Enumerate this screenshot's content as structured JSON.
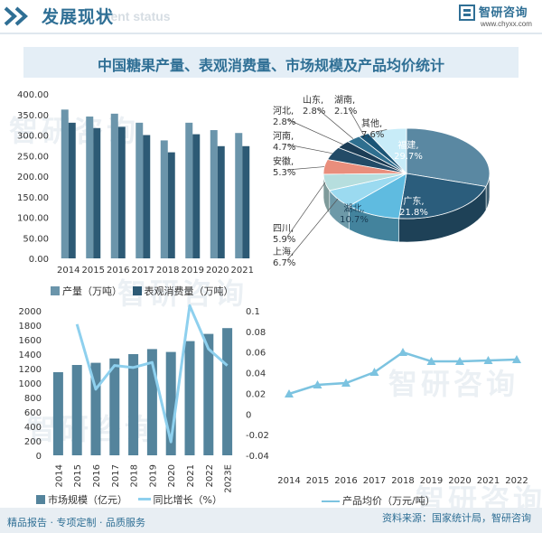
{
  "header": {
    "title": "发展现状",
    "subtitle": "ment status",
    "brand": "智研咨询",
    "url": "www.chyxx.com"
  },
  "main_title": "中国糖果产量、表观消费量、市场规模及产品均价统计",
  "colors": {
    "accent": "#2f6f95",
    "bar_light": "#6b95ab",
    "bar_dark": "#2d5a75",
    "market_bar": "#54849c",
    "growth_line": "#8ed0ee",
    "price_line": "#7cc3e0",
    "band": "#e4eef6"
  },
  "watermark": "智研咨询",
  "chart_data": [
    {
      "type": "bar",
      "categories": [
        "2014",
        "2015",
        "2016",
        "2017",
        "2018",
        "2019",
        "2020",
        "2021"
      ],
      "series": [
        {
          "name": "产量（万吨）",
          "values": [
            362,
            345,
            352,
            330,
            287,
            330,
            312,
            305
          ]
        },
        {
          "name": "表观消费量（万吨）",
          "values": [
            330,
            317,
            320,
            300,
            258,
            302,
            273,
            273
          ]
        }
      ],
      "yticks": [
        "0.00",
        "50.00",
        "100.00",
        "150.00",
        "200.00",
        "250.00",
        "300.00",
        "350.00",
        "400.00"
      ],
      "ylim": [
        0,
        400
      ],
      "legend": "bottom"
    },
    {
      "type": "pie",
      "labels": [
        "福建",
        "广东",
        "湖北",
        "上海",
        "四川",
        "安徽",
        "河南",
        "河北",
        "山东",
        "湖南",
        "其他"
      ],
      "values": [
        29.7,
        21.8,
        10.7,
        6.7,
        5.9,
        5.3,
        4.7,
        2.8,
        2.8,
        2.1,
        7.6
      ],
      "display": [
        "29.7%",
        "21.8%",
        "10.7%",
        "6.7%",
        "5.9%",
        "5.3%",
        "4.7%",
        "2.8%",
        "2.8%",
        "2.1%",
        "7.6%"
      ],
      "colors": [
        "#5a88a2",
        "#2b5d7c",
        "#5fbbe0",
        "#9bdaf0",
        "#b6dede",
        "#e98e7c",
        "#234b67",
        "#1c3d56",
        "#2f6f8f",
        "#1a5576",
        "#c8ecf8"
      ]
    },
    {
      "type": "bar",
      "categories": [
        "2014",
        "2015",
        "2016",
        "2017",
        "2018",
        "2019",
        "2020",
        "2021",
        "2022",
        "2023E"
      ],
      "series": [
        {
          "name": "市场规模（亿元）",
          "type": "bar",
          "values": [
            1150,
            1250,
            1280,
            1340,
            1400,
            1470,
            1430,
            1580,
            1680,
            1760
          ]
        },
        {
          "name": "同比增长（%）",
          "type": "line",
          "values": [
            null,
            0.087,
            0.024,
            0.047,
            0.045,
            0.05,
            -0.027,
            0.105,
            0.063,
            0.047
          ]
        }
      ],
      "yticks_left": [
        "0",
        "200",
        "400",
        "600",
        "800",
        "1000",
        "1200",
        "1400",
        "1600",
        "1800",
        "2000"
      ],
      "yticks_right": [
        "-0.04",
        "-0.02",
        "0",
        "0.02",
        "0.04",
        "0.06",
        "0.08",
        "0.1"
      ],
      "ylim_left": [
        0,
        2000
      ],
      "ylim_right": [
        -0.04,
        0.1
      ],
      "legend": "bottom"
    },
    {
      "type": "line",
      "categories": [
        "2014",
        "2015",
        "2016",
        "2017",
        "2018",
        "2019",
        "2020",
        "2021",
        "2022"
      ],
      "series": [
        {
          "name": "产品均价（万元/吨）",
          "values": [
            3.4,
            3.9,
            4.0,
            4.6,
            5.7,
            5.2,
            5.2,
            5.25,
            5.3
          ]
        }
      ],
      "ylim": [
        0,
        8
      ],
      "legend": "bottom"
    }
  ],
  "legend1": [
    {
      "label": "产量（万吨）"
    },
    {
      "label": "表观消费量（万吨）"
    }
  ],
  "legend3": [
    {
      "label": "市场规模（亿元）"
    },
    {
      "label": "同比增长（%）"
    }
  ],
  "legend4": [
    {
      "label": "产品均价（万元/吨）"
    }
  ],
  "footer": {
    "left": "精品报告 · 专项定制 · 品质服务",
    "right": "资料来源：国家统计局，智研咨询"
  }
}
